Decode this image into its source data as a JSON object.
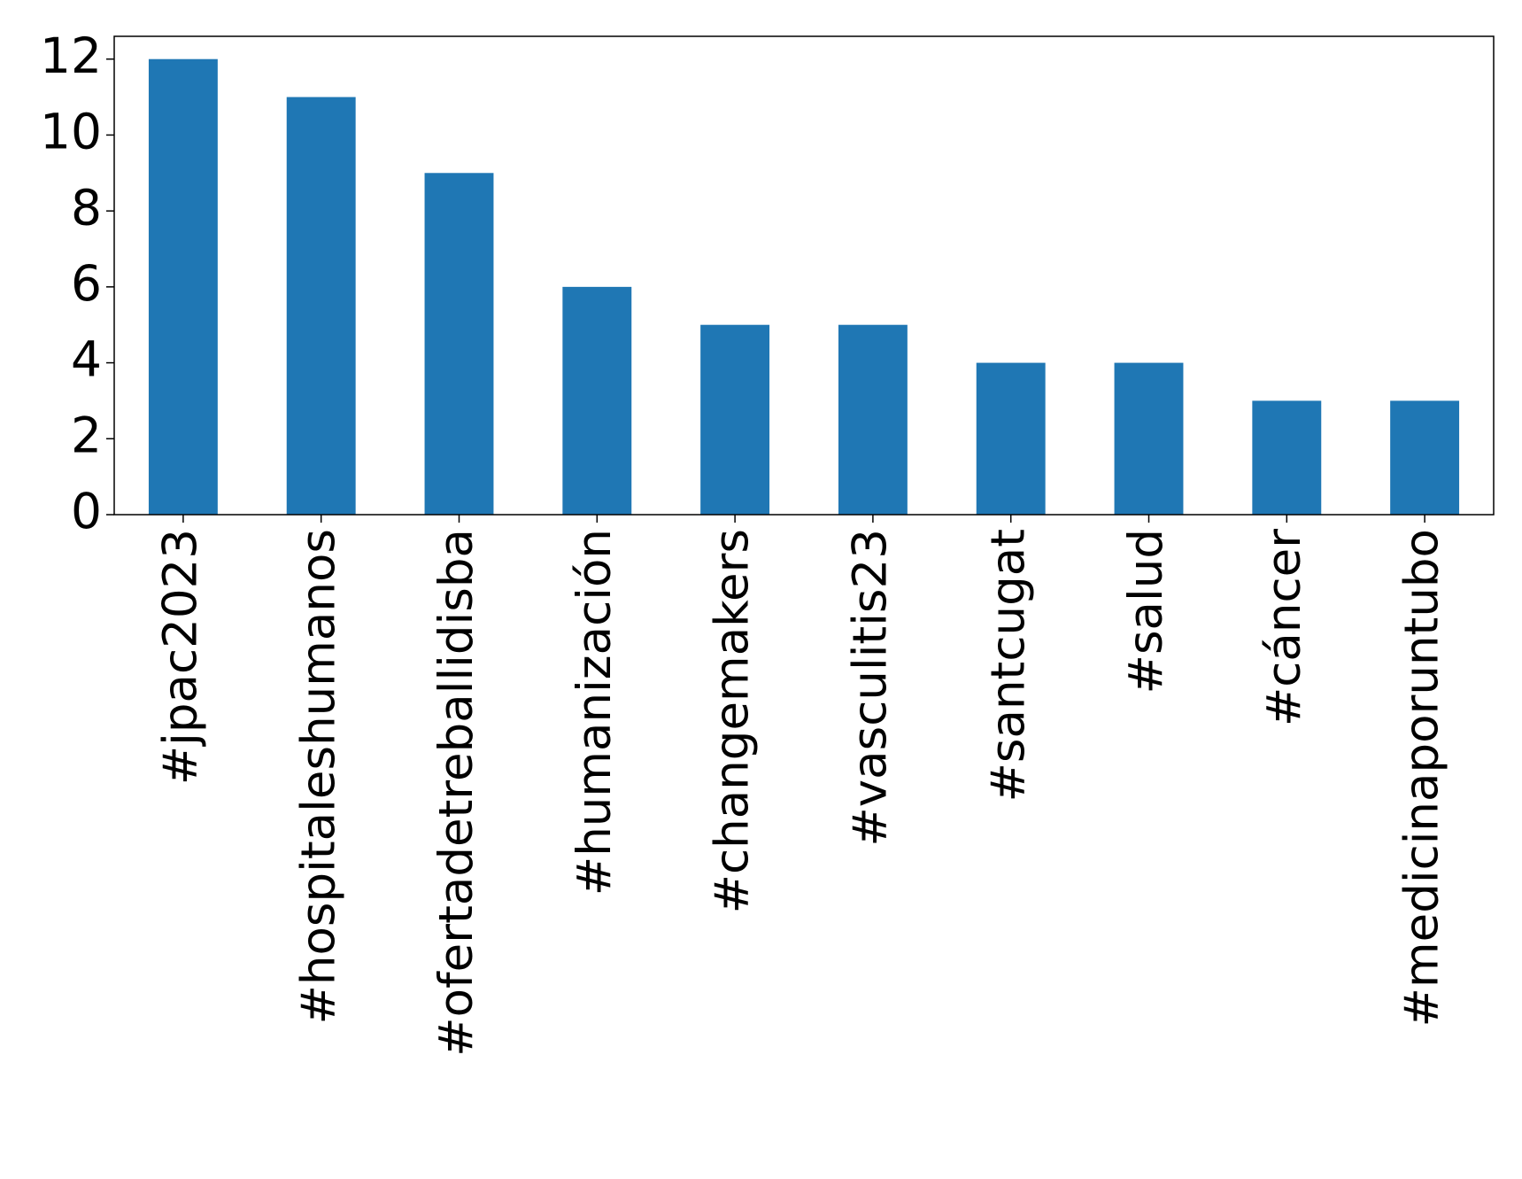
{
  "chart_data": {
    "type": "bar",
    "categories": [
      "#jpac2023",
      "#hospitaleshumanos",
      "#ofertadetreballidisba",
      "#humanización",
      "#changemakers",
      "#vasculitis23",
      "#santcugat",
      "#salud",
      "#cáncer",
      "#medicinaporuntubo"
    ],
    "values": [
      12,
      11,
      9,
      6,
      5,
      5,
      4,
      4,
      3,
      3
    ],
    "color": "#1f77b4",
    "ylim": [
      0,
      12.6
    ],
    "yticks": [
      0,
      2,
      4,
      6,
      8,
      10,
      12
    ],
    "grid": false
  }
}
